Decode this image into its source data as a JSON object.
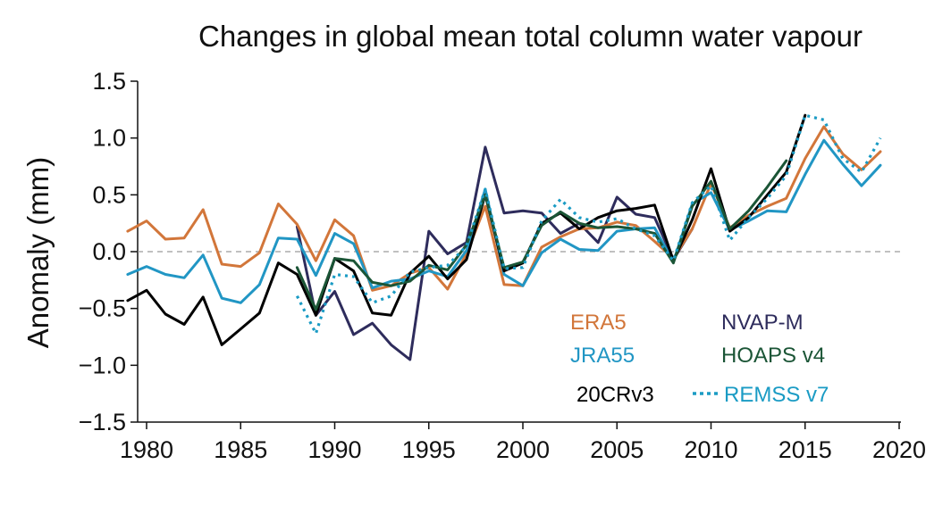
{
  "chart_data": {
    "type": "line",
    "title": "Changes in global mean total column water vapour",
    "xlabel": "",
    "ylabel": "Anomaly (mm)",
    "xlim": [
      1978,
      2020
    ],
    "ylim": [
      -1.5,
      1.5
    ],
    "xticks": [
      1980,
      1985,
      1990,
      1995,
      2000,
      2005,
      2010,
      2015,
      2020
    ],
    "yticks": [
      1.5,
      1.0,
      0.5,
      0.0,
      -0.5,
      -1.0,
      -1.5
    ],
    "ytick_labels": [
      "1.5",
      "1.0",
      "0.5",
      "0.0",
      "−0.5",
      "−1.0",
      "−1.5"
    ],
    "zero_line": true,
    "grid": false,
    "legend_placement": "bottom-right",
    "series": [
      {
        "name": "ERA5",
        "color": "#d2763a",
        "style": "solid",
        "x": [
          1979,
          1980,
          1981,
          1982,
          1983,
          1984,
          1985,
          1986,
          1987,
          1988,
          1989,
          1990,
          1991,
          1992,
          1993,
          1994,
          1995,
          1996,
          1997,
          1998,
          1999,
          2000,
          2001,
          2002,
          2003,
          2004,
          2005,
          2006,
          2007,
          2008,
          2009,
          2010,
          2011,
          2012,
          2013,
          2014,
          2015,
          2016,
          2017,
          2018,
          2019
        ],
        "y": [
          0.18,
          0.27,
          0.11,
          0.12,
          0.37,
          -0.11,
          -0.13,
          -0.01,
          0.42,
          0.24,
          -0.08,
          0.28,
          0.14,
          -0.34,
          -0.3,
          -0.19,
          -0.14,
          -0.33,
          -0.02,
          0.4,
          -0.29,
          -0.3,
          0.04,
          0.13,
          0.2,
          0.21,
          0.26,
          0.23,
          0.09,
          -0.06,
          0.2,
          0.6,
          0.21,
          0.32,
          0.4,
          0.47,
          0.82,
          1.1,
          0.86,
          0.72,
          0.88
        ]
      },
      {
        "name": "JRA55",
        "color": "#2196c4",
        "style": "solid",
        "x": [
          1979,
          1980,
          1981,
          1982,
          1983,
          1984,
          1985,
          1986,
          1987,
          1988,
          1989,
          1990,
          1991,
          1992,
          1993,
          1994,
          1995,
          1996,
          1997,
          1998,
          1999,
          2000,
          2001,
          2002,
          2003,
          2004,
          2005,
          2006,
          2007,
          2008,
          2009,
          2010,
          2011,
          2012,
          2013,
          2014,
          2015,
          2016,
          2017,
          2018,
          2019
        ],
        "y": [
          -0.2,
          -0.13,
          -0.2,
          -0.23,
          -0.03,
          -0.41,
          -0.45,
          -0.29,
          0.12,
          0.11,
          -0.21,
          0.16,
          0.07,
          -0.32,
          -0.26,
          -0.24,
          -0.17,
          -0.22,
          0.01,
          0.55,
          -0.2,
          -0.3,
          -0.01,
          0.11,
          0.02,
          0.01,
          0.18,
          0.2,
          0.21,
          -0.09,
          0.42,
          0.52,
          0.19,
          0.27,
          0.36,
          0.35,
          0.68,
          0.98,
          0.77,
          0.58,
          0.76
        ]
      },
      {
        "name": "20CRv3",
        "color": "#000000",
        "style": "solid",
        "x": [
          1979,
          1980,
          1981,
          1982,
          1983,
          1984,
          1985,
          1986,
          1987,
          1988,
          1989,
          1990,
          1991,
          1992,
          1993,
          1994,
          1995,
          1996,
          1997,
          1998,
          1999,
          2000,
          2001,
          2002,
          2003,
          2004,
          2005,
          2006,
          2007,
          2008,
          2009,
          2010,
          2011,
          2012,
          2013,
          2014,
          2015
        ],
        "y": [
          -0.43,
          -0.34,
          -0.55,
          -0.64,
          -0.4,
          -0.82,
          -0.68,
          -0.54,
          -0.1,
          -0.2,
          -0.56,
          -0.06,
          -0.17,
          -0.54,
          -0.56,
          -0.19,
          -0.04,
          -0.24,
          -0.07,
          0.5,
          -0.17,
          -0.1,
          0.25,
          0.34,
          0.2,
          0.3,
          0.36,
          0.38,
          0.41,
          -0.08,
          0.28,
          0.73,
          0.18,
          0.3,
          0.5,
          0.7,
          1.2
        ]
      },
      {
        "name": "NVAP-M",
        "color": "#2e2c5c",
        "style": "solid",
        "x": [
          1988,
          1989,
          1990,
          1991,
          1992,
          1993,
          1994,
          1995,
          1996,
          1997,
          1998,
          1999,
          2000,
          2001,
          2002,
          2003,
          2004,
          2005,
          2006,
          2007,
          2008,
          2009
        ],
        "y": [
          0.22,
          -0.56,
          -0.35,
          -0.73,
          -0.63,
          -0.82,
          -0.95,
          0.18,
          -0.02,
          0.08,
          0.92,
          0.34,
          0.36,
          0.34,
          0.16,
          0.25,
          0.08,
          0.48,
          0.33,
          0.3,
          -0.07,
          0.2
        ]
      },
      {
        "name": "HOAPS v4",
        "color": "#1b5536",
        "style": "solid",
        "x": [
          1988,
          1989,
          1990,
          1991,
          1992,
          1993,
          1994,
          1995,
          1996,
          1997,
          1998,
          1999,
          2000,
          2001,
          2002,
          2003,
          2004,
          2005,
          2006,
          2007,
          2008,
          2009,
          2010,
          2011,
          2012,
          2013,
          2014
        ],
        "y": [
          -0.14,
          -0.51,
          -0.06,
          -0.08,
          -0.27,
          -0.3,
          -0.26,
          -0.12,
          -0.16,
          0.06,
          0.5,
          -0.14,
          -0.09,
          0.23,
          0.35,
          0.25,
          0.21,
          0.22,
          0.2,
          0.16,
          -0.1,
          0.4,
          0.62,
          0.2,
          0.36,
          0.57,
          0.8
        ]
      },
      {
        "name": "REMSS v7",
        "color": "#1a9bc4",
        "style": "dotted",
        "x": [
          1988,
          1989,
          1990,
          1991,
          1992,
          1993,
          1994,
          1995,
          1996,
          1997,
          1998,
          1999,
          2000,
          2001,
          2002,
          2003,
          2004,
          2005,
          2006,
          2007,
          2008,
          2009,
          2010,
          2011,
          2012,
          2013,
          2014,
          2015,
          2016,
          2017,
          2018,
          2019
        ],
        "y": [
          -0.39,
          -0.72,
          -0.2,
          -0.22,
          -0.45,
          -0.39,
          -0.18,
          -0.14,
          -0.12,
          0.05,
          0.55,
          -0.15,
          -0.14,
          0.27,
          0.46,
          0.3,
          0.26,
          0.29,
          0.2,
          0.14,
          -0.08,
          0.43,
          0.58,
          0.1,
          0.3,
          0.47,
          0.67,
          1.2,
          1.16,
          0.82,
          0.7,
          1.0
        ]
      }
    ]
  },
  "legend": {
    "items": [
      {
        "label": "ERA5",
        "color": "#d2763a"
      },
      {
        "label": "NVAP-M",
        "color": "#2e2c5c"
      },
      {
        "label": "JRA55",
        "color": "#2196c4"
      },
      {
        "label": "HOAPS v4",
        "color": "#1b5536"
      },
      {
        "label": "20CRv3",
        "color": "#000000"
      },
      {
        "label": "REMSS v7",
        "color": "#1a9bc4"
      }
    ]
  }
}
